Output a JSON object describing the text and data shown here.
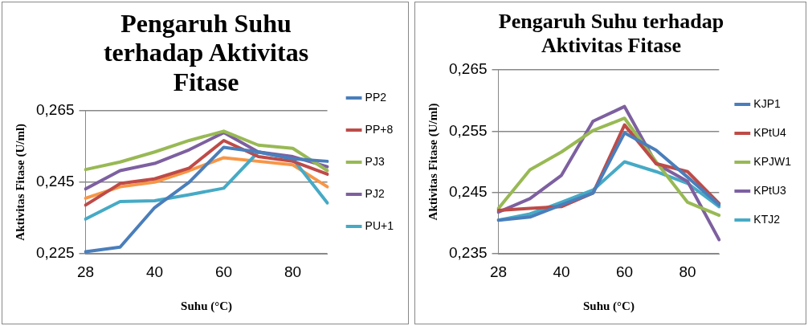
{
  "chart_data": [
    {
      "type": "line",
      "title": "Pengaruh Suhu terhadap Aktivitas Fitase",
      "xlabel": "Suhu (°C)",
      "ylabel": "Aktivitas Fitase (U/ml)",
      "categories": [
        "28",
        null,
        "40",
        null,
        "60",
        null,
        "80",
        null
      ],
      "ylim": [
        0.225,
        0.265
      ],
      "yticks": [
        {
          "value": 0.225,
          "label": "0,225"
        },
        {
          "value": 0.245,
          "label": "0,245"
        },
        {
          "value": 0.265,
          "label": "0,265"
        }
      ],
      "grid": "y",
      "legend": "right",
      "marker": "none",
      "series": [
        {
          "name": "PP2",
          "color": "#4a7ebb",
          "values": [
            0.2256,
            0.2269,
            0.2379,
            0.245,
            0.2547,
            0.2534,
            0.2515,
            0.2508
          ]
        },
        {
          "name": "PP+8",
          "color": "#be4b48",
          "values": [
            0.2386,
            0.2446,
            0.2459,
            0.2489,
            0.2566,
            0.2521,
            0.2508,
            0.2472
          ]
        },
        {
          "name": "PJ3",
          "color": "#98b954",
          "values": [
            0.2485,
            0.2506,
            0.2534,
            0.2566,
            0.2592,
            0.2553,
            0.2544,
            0.2482
          ]
        },
        {
          "name": "PJ2",
          "color": "#7d60a0",
          "values": [
            0.2431,
            0.2482,
            0.2502,
            0.254,
            0.2588,
            0.2534,
            0.2521,
            0.2493
          ]
        },
        {
          "name": "PU+1",
          "color": "#46aac5",
          "values": [
            0.2347,
            0.2396,
            0.2398,
            0.2415,
            0.2433,
            0.2534,
            0.2515,
            0.2392
          ]
        },
        {
          "color": "#f79646",
          "values": [
            0.2405,
            0.2437,
            0.245,
            0.2482,
            0.2518,
            0.2508,
            0.2498,
            0.2437
          ]
        }
      ]
    },
    {
      "type": "line",
      "title": "Pengaruh Suhu terhadap Aktivitas Fitase",
      "xlabel": "Suhu (°C)",
      "ylabel": "Aktivitas Fitase (U/ml)",
      "categories": [
        "28",
        null,
        "40",
        null,
        "60",
        null,
        "80",
        null
      ],
      "ylim": [
        0.235,
        0.265
      ],
      "yticks": [
        {
          "value": 0.235,
          "label": "0,235"
        },
        {
          "value": 0.245,
          "label": "0,245"
        },
        {
          "value": 0.255,
          "label": "0,255"
        },
        {
          "value": 0.265,
          "label": "0,265"
        }
      ],
      "grid": "y",
      "legend": "right",
      "marker": "none",
      "series": [
        {
          "name": "KJP1",
          "color": "#4a7ebb",
          "values": [
            0.2405,
            0.241,
            0.243,
            0.2449,
            0.2547,
            0.2519,
            0.2475,
            0.243
          ]
        },
        {
          "name": "KPtU4",
          "color": "#be4b48",
          "values": [
            0.2421,
            0.2424,
            0.2427,
            0.2449,
            0.256,
            0.2497,
            0.2484,
            0.2432
          ]
        },
        {
          "name": "KPJW1",
          "color": "#98b954",
          "values": [
            0.2424,
            0.2487,
            0.2516,
            0.2551,
            0.2571,
            0.25,
            0.2434,
            0.2413
          ]
        },
        {
          "name": "KPtU3",
          "color": "#7d60a0",
          "values": [
            0.2418,
            0.244,
            0.2478,
            0.2566,
            0.259,
            0.2497,
            0.2468,
            0.2373
          ]
        },
        {
          "name": "KTJ2",
          "color": "#46aac5",
          "values": [
            0.2405,
            0.2415,
            0.2434,
            0.2454,
            0.25,
            0.2484,
            0.2465,
            0.2427
          ]
        }
      ]
    }
  ]
}
